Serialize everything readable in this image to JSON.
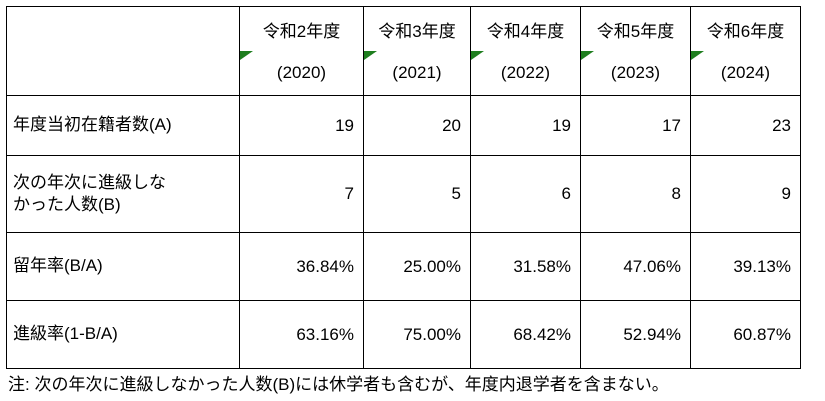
{
  "colors": {
    "background": "#FFFFFF",
    "text": "#000000",
    "border": "#000000",
    "indicator_green": "#1E7E1E"
  },
  "icons": {
    "error_indicator": "green-corner-triangle"
  },
  "table": {
    "corner_label": "",
    "columns": [
      {
        "era": "令和2年度",
        "year": "(2020)"
      },
      {
        "era": "令和3年度",
        "year": "(2021)"
      },
      {
        "era": "令和4年度",
        "year": "(2022)"
      },
      {
        "era": "令和5年度",
        "year": "(2023)"
      },
      {
        "era": "令和6年度",
        "year": "(2024)"
      }
    ],
    "rows": [
      {
        "label": "年度当初在籍者数(A)",
        "values": [
          "19",
          "20",
          "19",
          "17",
          "23"
        ]
      },
      {
        "label": "次の年次に進級しな\nかった人数(B)",
        "values": [
          "7",
          "5",
          "6",
          "8",
          "9"
        ]
      },
      {
        "label": "留年率(B/A)",
        "values": [
          "36.84%",
          "25.00%",
          "31.58%",
          "47.06%",
          "39.13%"
        ]
      },
      {
        "label": "進級率(1-B/A)",
        "values": [
          "63.16%",
          "75.00%",
          "68.42%",
          "52.94%",
          "60.87%"
        ]
      }
    ]
  },
  "note": "注: 次の年次に進級しなかった人数(B)には休学者も含むが、年度内退学者を含まない。"
}
